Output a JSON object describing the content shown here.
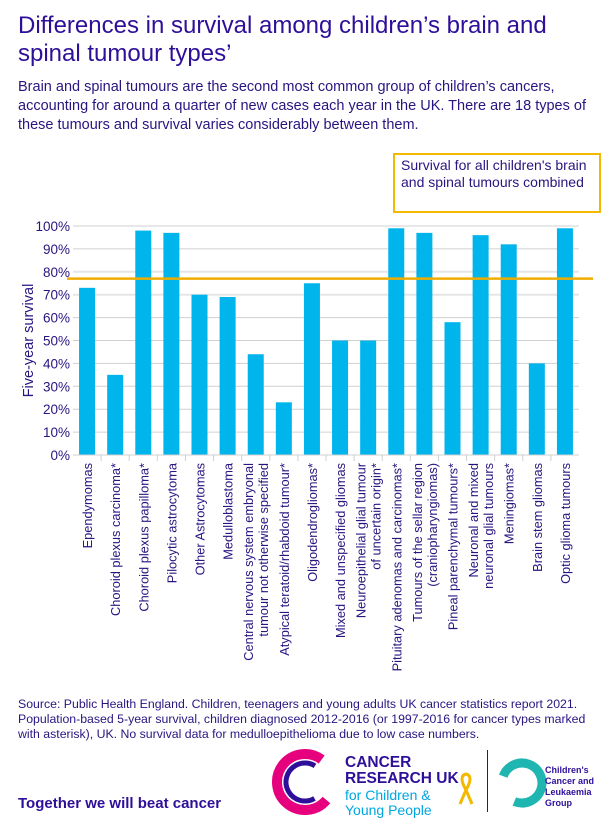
{
  "title": "Differences in survival among children’s brain and spinal tumour types’",
  "subtitle": "Brain and spinal tumours are the second most common group of children’s cancers, accounting for around a quarter of new cases each year in the UK. There are 18 types of these tumours and survival varies considerably between them.",
  "annotation": "Survival for all children's brain and spinal tumours combined",
  "source": "Source: Public Health England. Children, teenagers and young adults UK cancer statistics report 2021. Population-based 5-year survival, children diagnosed 2012-2016 (or 1997-2016 for cancer types marked with asterisk), UK. No survival data for medulloepithelioma due to low case numbers.",
  "tagline": "Together we will beat cancer",
  "logos": {
    "cruk": "CANCER RESEARCH UK",
    "cruk_sub": "for Children & Young People",
    "cclg": "Children's Cancer and Leukaemia Group"
  },
  "colors": {
    "bar": "#00b4ec",
    "reference_line": "#f0ad00",
    "text": "#2a1480"
  },
  "chart_data": {
    "type": "bar",
    "ylabel": "Five-year survival",
    "ylim": [
      0,
      100
    ],
    "yticks": [
      "0%",
      "10%",
      "20%",
      "30%",
      "40%",
      "50%",
      "60%",
      "70%",
      "80%",
      "90%",
      "100%"
    ],
    "grid": true,
    "reference_line": {
      "value": 77,
      "label": "Survival for all children's brain and spinal tumours combined"
    },
    "categories": [
      [
        "Ependymomas"
      ],
      [
        "Choroid plexus carcinoma*"
      ],
      [
        "Choroid plexus papilloma*"
      ],
      [
        "Pilocytic astrocytoma"
      ],
      [
        "Other Astrocytomas"
      ],
      [
        "Medulloblastoma"
      ],
      [
        "Central nervous system embryonal",
        "tumour not otherwise specified"
      ],
      [
        "Atypical teratoid/rhabdoid tumour*"
      ],
      [
        "Oligodendrogliomas*"
      ],
      [
        "Mixed and unspecified gliomas"
      ],
      [
        "Neuroepithelial glial tumour",
        "of uncertain origin*"
      ],
      [
        "Pituitary adenomas and carcinomas*"
      ],
      [
        "Tumours of the sellar region",
        "(craniopharyngiomas)"
      ],
      [
        "Pineal parenchymal tumours*"
      ],
      [
        "Neuronal and mixed",
        "neuronal glial tumours"
      ],
      [
        "Meningiomas*"
      ],
      [
        "Brain stem gliomas"
      ],
      [
        "Optic glioma tumours"
      ]
    ],
    "values": [
      73,
      35,
      98,
      97,
      70,
      69,
      44,
      23,
      75,
      50,
      50,
      99,
      97,
      58,
      96,
      92,
      40,
      99
    ]
  }
}
